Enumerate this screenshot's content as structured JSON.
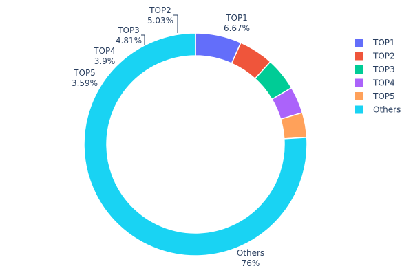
{
  "chart_data": {
    "type": "pie",
    "hole": true,
    "categories": [
      "TOP1",
      "TOP2",
      "TOP3",
      "TOP4",
      "TOP5",
      "Others"
    ],
    "values": [
      6.67,
      5.03,
      4.81,
      3.9,
      3.59,
      76
    ],
    "value_labels": [
      "6.67%",
      "5.03%",
      "4.81%",
      "3.9%",
      "3.59%",
      "76%"
    ],
    "colors": [
      "#636efa",
      "#ef553b",
      "#00cc96",
      "#ab63fa",
      "#ffa15a",
      "#19d3f3"
    ],
    "legend": {
      "position": "top-right",
      "entries": [
        "TOP1",
        "TOP2",
        "TOP3",
        "TOP4",
        "TOP5",
        "Others"
      ]
    },
    "title": ""
  }
}
